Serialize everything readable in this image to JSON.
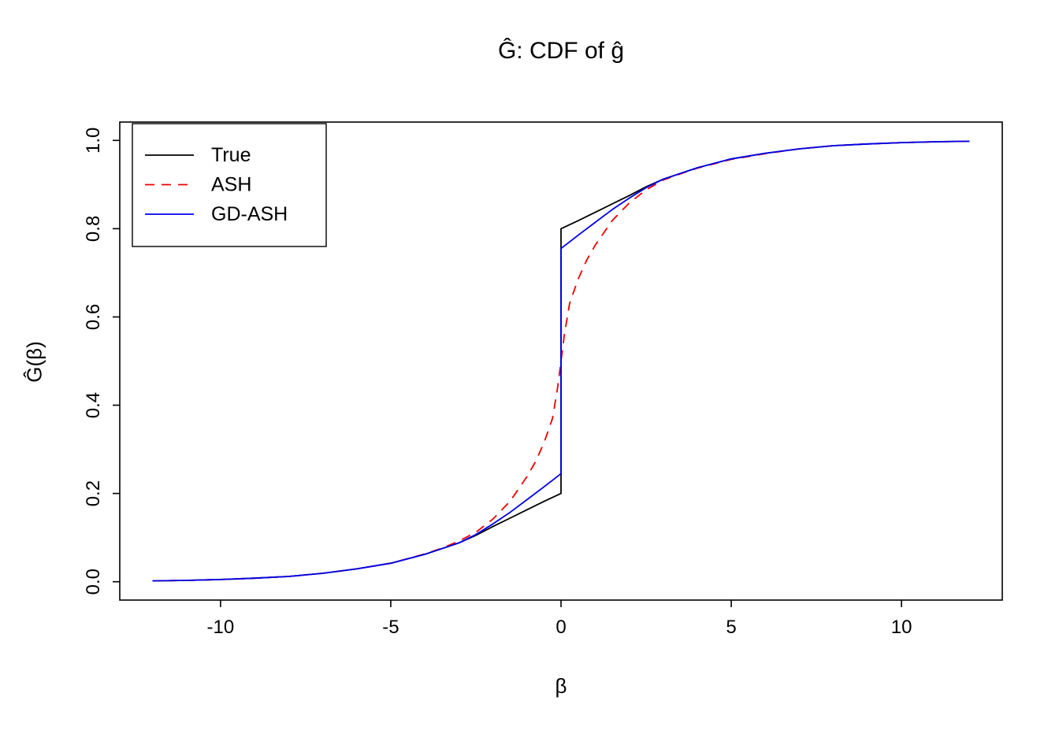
{
  "chart_data": {
    "type": "line",
    "title": "Ĝ: CDF of ĝ",
    "xlabel": "β",
    "ylabel": "Ĝ(β)",
    "xlim": [
      -12.96,
      12.96
    ],
    "ylim": [
      -0.0416,
      1.0416
    ],
    "grid": false,
    "x_ticks": [
      {
        "value": -10,
        "label": "-10"
      },
      {
        "value": -5,
        "label": "-5"
      },
      {
        "value": 0,
        "label": "0"
      },
      {
        "value": 5,
        "label": "5"
      },
      {
        "value": 10,
        "label": "10"
      }
    ],
    "y_ticks": [
      {
        "value": 0.0,
        "label": "0.0"
      },
      {
        "value": 0.2,
        "label": "0.2"
      },
      {
        "value": 0.4,
        "label": "0.4"
      },
      {
        "value": 0.6,
        "label": "0.6"
      },
      {
        "value": 0.8,
        "label": "0.8"
      },
      {
        "value": 1.0,
        "label": "1.0"
      }
    ],
    "legend": {
      "position": "top-left",
      "entries": [
        {
          "label": "True",
          "color": "#000000",
          "dash": null
        },
        {
          "label": "ASH",
          "color": "#ee0000",
          "dash": [
            12,
            9
          ]
        },
        {
          "label": "GD-ASH",
          "color": "#0000ee",
          "dash": null
        }
      ]
    },
    "series": [
      {
        "name": "True",
        "color": "#000000",
        "dash": null,
        "width": 1.8,
        "points": [
          [
            -12,
            0.002
          ],
          [
            -11,
            0.003
          ],
          [
            -10,
            0.005
          ],
          [
            -9,
            0.008
          ],
          [
            -8,
            0.012
          ],
          [
            -7,
            0.019
          ],
          [
            -6,
            0.029
          ],
          [
            -5,
            0.042
          ],
          [
            -4,
            0.062
          ],
          [
            -3.5,
            0.075
          ],
          [
            -3,
            0.088
          ],
          [
            -2.5,
            0.105
          ],
          [
            -2,
            0.125
          ],
          [
            -1.5,
            0.144
          ],
          [
            -1,
            0.163
          ],
          [
            -0.5,
            0.182
          ],
          [
            0,
            0.2
          ],
          [
            0,
            0.8
          ],
          [
            0.5,
            0.818
          ],
          [
            1,
            0.837
          ],
          [
            1.5,
            0.856
          ],
          [
            2,
            0.875
          ],
          [
            2.5,
            0.895
          ],
          [
            3,
            0.912
          ],
          [
            3.5,
            0.925
          ],
          [
            4,
            0.938
          ],
          [
            5,
            0.958
          ],
          [
            6,
            0.971
          ],
          [
            7,
            0.981
          ],
          [
            8,
            0.988
          ],
          [
            9,
            0.992
          ],
          [
            10,
            0.995
          ],
          [
            11,
            0.997
          ],
          [
            12,
            0.998
          ]
        ]
      },
      {
        "name": "ASH",
        "color": "#ee0000",
        "dash": [
          12,
          9
        ],
        "width": 1.8,
        "points": [
          [
            -12,
            0.002
          ],
          [
            -11,
            0.003
          ],
          [
            -10,
            0.005
          ],
          [
            -9,
            0.008
          ],
          [
            -8,
            0.012
          ],
          [
            -7,
            0.019
          ],
          [
            -6,
            0.029
          ],
          [
            -5,
            0.042
          ],
          [
            -4,
            0.063
          ],
          [
            -3.5,
            0.076
          ],
          [
            -3,
            0.092
          ],
          [
            -2.5,
            0.112
          ],
          [
            -2,
            0.142
          ],
          [
            -1.5,
            0.182
          ],
          [
            -1,
            0.238
          ],
          [
            -0.75,
            0.272
          ],
          [
            -0.5,
            0.315
          ],
          [
            -0.25,
            0.37
          ],
          [
            -0.1,
            0.44
          ],
          [
            0,
            0.5
          ],
          [
            0.1,
            0.56
          ],
          [
            0.25,
            0.63
          ],
          [
            0.5,
            0.685
          ],
          [
            0.75,
            0.728
          ],
          [
            1,
            0.762
          ],
          [
            1.5,
            0.818
          ],
          [
            2,
            0.858
          ],
          [
            2.5,
            0.888
          ],
          [
            3,
            0.91
          ],
          [
            3.5,
            0.924
          ],
          [
            4,
            0.937
          ],
          [
            5,
            0.957
          ],
          [
            6,
            0.97
          ],
          [
            7,
            0.981
          ],
          [
            8,
            0.988
          ],
          [
            9,
            0.992
          ],
          [
            10,
            0.995
          ],
          [
            11,
            0.997
          ],
          [
            12,
            0.998
          ]
        ]
      },
      {
        "name": "GD-ASH",
        "color": "#0000ee",
        "dash": null,
        "width": 1.8,
        "points": [
          [
            -12,
            0.002
          ],
          [
            -11,
            0.003
          ],
          [
            -10,
            0.005
          ],
          [
            -9,
            0.008
          ],
          [
            -8,
            0.012
          ],
          [
            -7,
            0.019
          ],
          [
            -6,
            0.029
          ],
          [
            -5,
            0.042
          ],
          [
            -4,
            0.062
          ],
          [
            -3.5,
            0.075
          ],
          [
            -3,
            0.088
          ],
          [
            -2.5,
            0.107
          ],
          [
            -2,
            0.131
          ],
          [
            -1.5,
            0.157
          ],
          [
            -1,
            0.186
          ],
          [
            -0.5,
            0.215
          ],
          [
            0,
            0.245
          ],
          [
            0,
            0.755
          ],
          [
            0.5,
            0.785
          ],
          [
            1,
            0.814
          ],
          [
            1.5,
            0.843
          ],
          [
            2,
            0.869
          ],
          [
            2.5,
            0.893
          ],
          [
            3,
            0.912
          ],
          [
            3.5,
            0.925
          ],
          [
            4,
            0.938
          ],
          [
            5,
            0.958
          ],
          [
            6,
            0.971
          ],
          [
            7,
            0.981
          ],
          [
            8,
            0.988
          ],
          [
            9,
            0.992
          ],
          [
            10,
            0.995
          ],
          [
            11,
            0.997
          ],
          [
            12,
            0.998
          ]
        ]
      }
    ]
  }
}
